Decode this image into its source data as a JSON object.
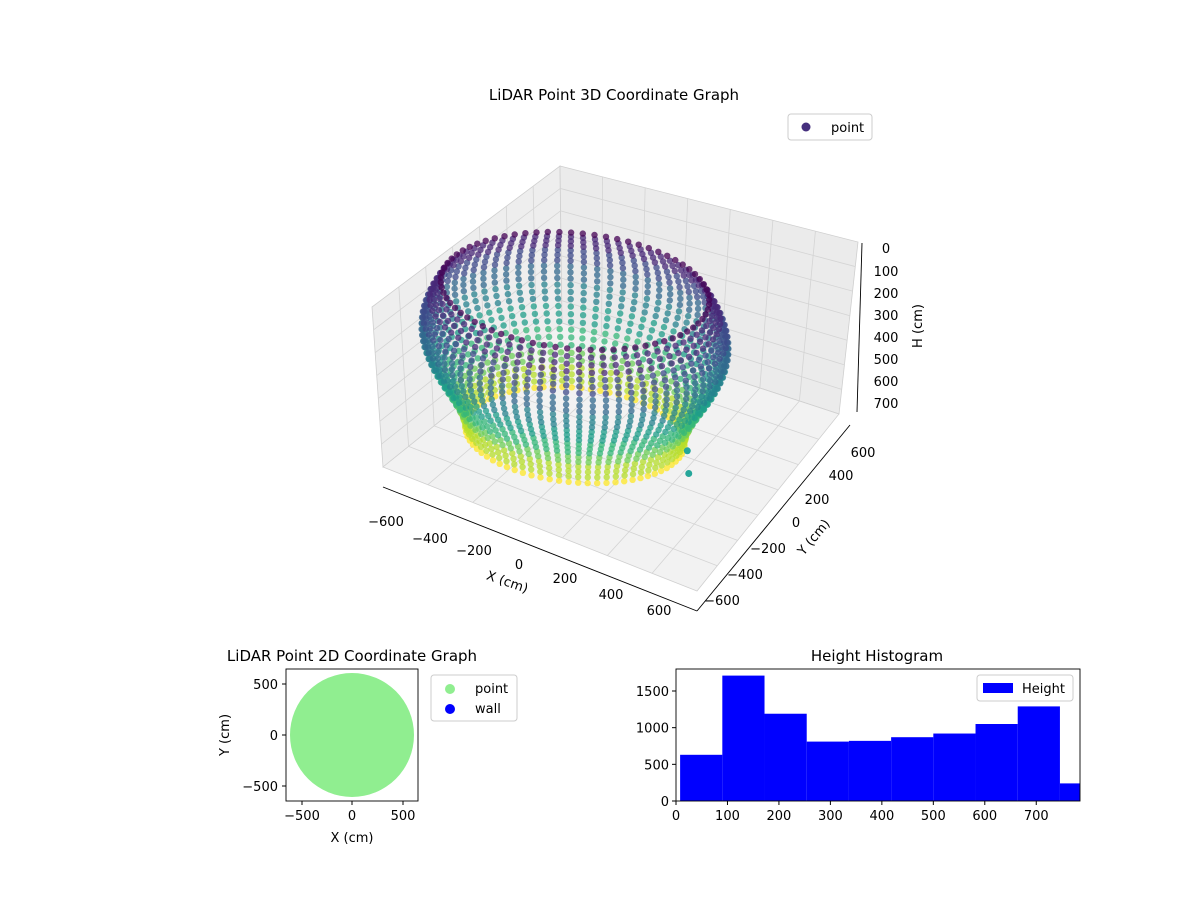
{
  "chart_data": [
    {
      "type": "scatter",
      "projection": "3d",
      "title": "LiDAR Point 3D Coordinate Graph",
      "xlabel": "X (cm)",
      "ylabel": "Y (cm)",
      "zlabel": "H (cm)",
      "xlim": [
        -650,
        650
      ],
      "ylim": [
        -650,
        650
      ],
      "zlim": [
        780,
        0
      ],
      "xticks": [
        "−600",
        "−400",
        "−200",
        "0",
        "200",
        "400",
        "600"
      ],
      "yticks": [
        "−600",
        "−400",
        "−200",
        "0",
        "200",
        "400",
        "600"
      ],
      "zticks": [
        "0",
        "100",
        "200",
        "300",
        "400",
        "500",
        "600",
        "700"
      ],
      "z_inverted": true,
      "grid": true,
      "legend": {
        "placement": "upper-right",
        "entries": [
          {
            "name": "point",
            "color": "#46307e"
          }
        ]
      },
      "colormap": "viridis",
      "description": "dense ring-shaped cloud of points",
      "outliers": [
        {
          "x": 380,
          "y": 180,
          "h": 720
        },
        {
          "x": 450,
          "y": 100,
          "h": 770
        }
      ]
    },
    {
      "type": "scatter",
      "title": "LiDAR Point 2D Coordinate Graph",
      "xlabel": "X (cm)",
      "ylabel": "Y (cm)",
      "xlim": [
        -650,
        650
      ],
      "ylim": [
        -650,
        650
      ],
      "xticks": [
        "−500",
        "0",
        "500"
      ],
      "yticks": [
        "−500",
        "0",
        "500"
      ],
      "legend": {
        "placement": "outside-right",
        "entries": [
          {
            "name": "point",
            "color": "#90ee90"
          },
          {
            "name": "wall",
            "color": "#0000ff"
          }
        ]
      },
      "series": [
        {
          "name": "point",
          "color": "#90ee90",
          "shape": "disc",
          "center": [
            0,
            0
          ],
          "radius": 600
        }
      ]
    },
    {
      "type": "bar",
      "histogram": true,
      "title": "Height Histogram",
      "xlim": [
        0,
        785
      ],
      "ylim": [
        0,
        1800
      ],
      "xticks": [
        0,
        100,
        200,
        300,
        400,
        500,
        600,
        700
      ],
      "yticks": [
        0,
        500,
        1000,
        1500
      ],
      "legend": {
        "placement": "upper-right",
        "entries": [
          {
            "name": "Height",
            "color": "#0000ff"
          }
        ]
      },
      "color": "#0000ff",
      "bin_edges": [
        8,
        90,
        172,
        254,
        336,
        418,
        500,
        582,
        664,
        746,
        785
      ],
      "counts": [
        630,
        1710,
        1190,
        810,
        820,
        870,
        920,
        1050,
        1290,
        240
      ]
    }
  ]
}
